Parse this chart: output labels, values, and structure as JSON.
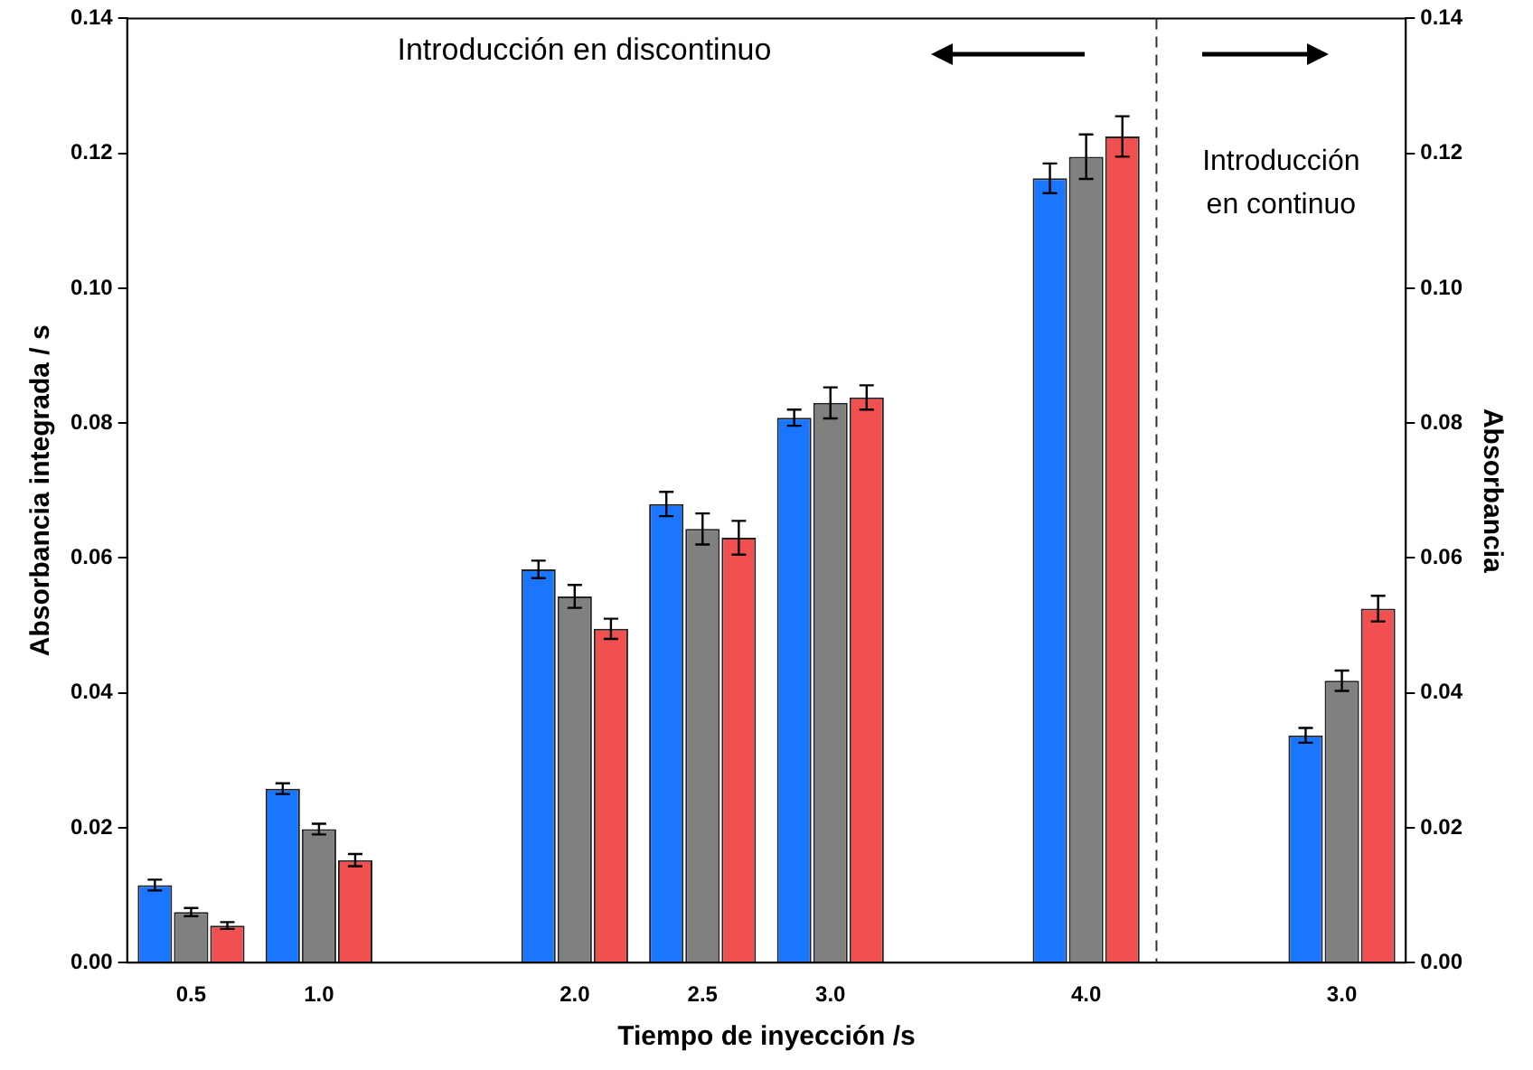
{
  "chart_data": {
    "type": "bar",
    "xlabel": "Tiempo de inyección /s",
    "ylabel": "Absorbancia integrada / s",
    "y2label": "Absorbancia",
    "categories": [
      "0.5",
      "1.0",
      null,
      "2.0",
      "2.5",
      "3.0",
      null,
      "4.0",
      null,
      "3.0"
    ],
    "series": [
      {
        "color": "#1a75ff",
        "values": [
          0.0115,
          0.0258,
          null,
          0.0583,
          0.068,
          0.0808,
          null,
          0.1163,
          null,
          0.0337
        ],
        "errors": [
          0.0008,
          0.0008,
          null,
          0.0013,
          0.0018,
          0.0012,
          null,
          0.0022,
          null,
          0.0011
        ]
      },
      {
        "color": "#808080",
        "values": [
          0.0075,
          0.0198,
          null,
          0.0543,
          0.0643,
          0.083,
          null,
          0.1195,
          null,
          0.0418
        ],
        "errors": [
          0.0006,
          0.0008,
          null,
          0.0017,
          0.0023,
          0.0023,
          null,
          0.0033,
          null,
          0.0015
        ]
      },
      {
        "color": "#f05050",
        "values": [
          0.0055,
          0.0152,
          null,
          0.0495,
          0.063,
          0.0838,
          null,
          0.1225,
          null,
          0.0525
        ],
        "errors": [
          0.0005,
          0.0009,
          null,
          0.0015,
          0.0025,
          0.0018,
          null,
          0.003,
          null,
          0.0019
        ]
      }
    ],
    "ylim": [
      0,
      0.14
    ],
    "yticks": [
      {
        "value": 0,
        "label": "0.00"
      },
      {
        "value": 0.02,
        "label": "0.02"
      },
      {
        "value": 0.04,
        "label": "0.04"
      },
      {
        "value": 0.06,
        "label": "0.06"
      },
      {
        "value": 0.08,
        "label": "0.08"
      },
      {
        "value": 0.1,
        "label": "0.10"
      },
      {
        "value": 0.12,
        "label": "0.12"
      },
      {
        "value": 0.14,
        "label": "0.14"
      }
    ],
    "y2lim": [
      0,
      0.14
    ],
    "y2ticks": [
      {
        "value": 0,
        "label": "0.00"
      },
      {
        "value": 0.02,
        "label": "0.02"
      },
      {
        "value": 0.04,
        "label": "0.04"
      },
      {
        "value": 0.06,
        "label": "0.06"
      },
      {
        "value": 0.08,
        "label": "0.08"
      },
      {
        "value": 0.1,
        "label": "0.10"
      },
      {
        "value": 0.12,
        "label": "0.12"
      },
      {
        "value": 0.14,
        "label": "0.14"
      }
    ],
    "ref_lines": [
      {
        "axis": "x",
        "value": null,
        "line_style": "dashed",
        "color": "#333333"
      }
    ],
    "annotations": [
      "Introducción en discontinuo",
      "Introducción\nen continuo"
    ],
    "grid": false,
    "legend": false
  }
}
